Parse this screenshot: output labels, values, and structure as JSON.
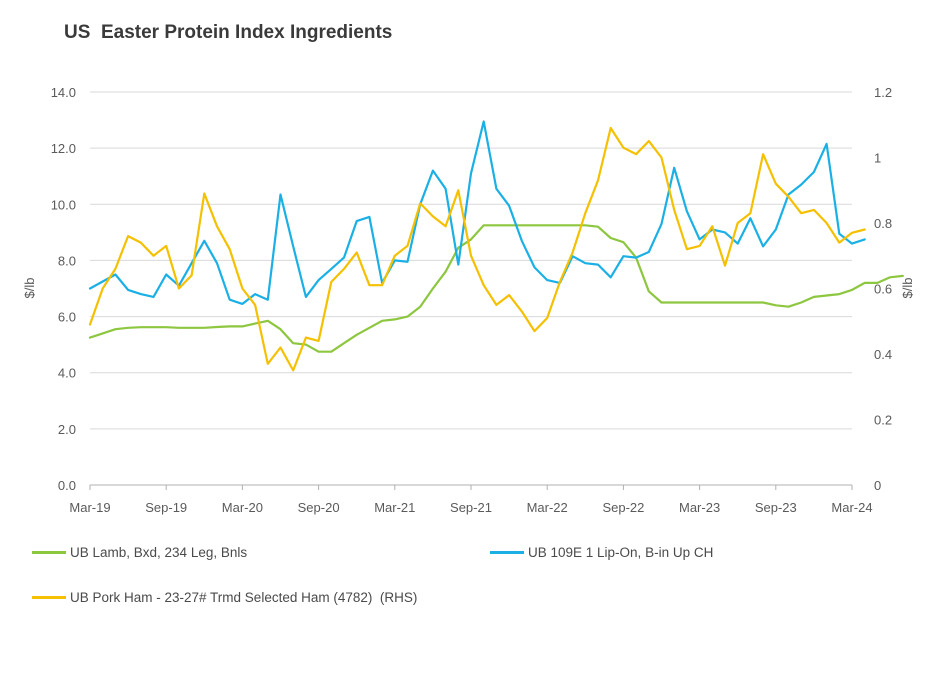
{
  "chart_data": {
    "type": "line",
    "title": "US  Easter Protein Index Ingredients",
    "ylabel": "$/lb",
    "y2label": "$/lb",
    "ylim": [
      0,
      14
    ],
    "y2lim": [
      0,
      1.2
    ],
    "yticks": [
      "0.0",
      "2.0",
      "4.0",
      "6.0",
      "8.0",
      "10.0",
      "12.0",
      "14.0"
    ],
    "y2ticks": [
      "0",
      "0.2",
      "0.4",
      "0.6",
      "0.8",
      "1",
      "1.2"
    ],
    "xticks": [
      "Mar-19",
      "Sep-19",
      "Mar-20",
      "Sep-20",
      "Mar-21",
      "Sep-21",
      "Mar-22",
      "Sep-22",
      "Mar-23",
      "Sep-23",
      "Mar-24"
    ],
    "xtick_month_index": [
      0,
      6,
      12,
      18,
      24,
      30,
      36,
      42,
      48,
      54,
      60
    ],
    "grid": "horizontal",
    "legend_position": "bottom",
    "series": [
      {
        "name": "UB Lamb, Bxd, 234 Leg, Bnls",
        "axis": "left",
        "color": "#8dc63f",
        "values": [
          5.25,
          5.4,
          5.55,
          5.6,
          5.62,
          5.62,
          5.62,
          5.6,
          5.6,
          5.6,
          5.63,
          5.65,
          5.65,
          5.75,
          5.85,
          5.55,
          5.05,
          5.0,
          4.75,
          4.75,
          5.05,
          5.35,
          5.6,
          5.85,
          5.9,
          6.0,
          6.35,
          7.0,
          7.6,
          8.45,
          8.75,
          9.25,
          9.25,
          9.25,
          9.25,
          9.25,
          9.25,
          9.25,
          9.25,
          9.25,
          9.2,
          8.8,
          8.65,
          8.1,
          6.9,
          6.5,
          6.5,
          6.5,
          6.5,
          6.5,
          6.5,
          6.5,
          6.5,
          6.5,
          6.4,
          6.35,
          6.5,
          6.7,
          6.75,
          6.8,
          6.95,
          7.2,
          7.2,
          7.4,
          7.45
        ]
      },
      {
        "name": "UB 109E 1 Lip-On, B-in Up CH",
        "axis": "left",
        "color": "#1ab0e6",
        "values": [
          7.0,
          7.25,
          7.5,
          6.95,
          6.8,
          6.7,
          7.5,
          7.1,
          7.9,
          8.7,
          7.9,
          6.6,
          6.45,
          6.8,
          6.6,
          10.35,
          8.5,
          6.7,
          7.3,
          7.7,
          8.1,
          9.4,
          9.55,
          7.2,
          8.0,
          7.95,
          10.0,
          11.2,
          10.55,
          7.85,
          11.1,
          12.95,
          10.55,
          9.95,
          8.7,
          7.75,
          7.3,
          7.2,
          8.15,
          7.9,
          7.85,
          7.4,
          8.15,
          8.1,
          8.3,
          9.3,
          11.3,
          9.75,
          8.75,
          9.1,
          9.0,
          8.6,
          9.5,
          8.5,
          9.1,
          10.35,
          10.7,
          11.15,
          12.15,
          8.95,
          8.6,
          8.75
        ]
      },
      {
        "name": "UB Pork Ham - 23-27# Trmd Selected Ham (4782)  (RHS)",
        "axis": "right",
        "color": "#f5c000",
        "values": [
          0.49,
          0.6,
          0.66,
          0.76,
          0.74,
          0.7,
          0.73,
          0.6,
          0.64,
          0.89,
          0.79,
          0.72,
          0.6,
          0.55,
          0.37,
          0.42,
          0.35,
          0.45,
          0.44,
          0.62,
          0.66,
          0.71,
          0.61,
          0.61,
          0.7,
          0.73,
          0.86,
          0.82,
          0.79,
          0.9,
          0.7,
          0.61,
          0.55,
          0.58,
          0.53,
          0.47,
          0.51,
          0.62,
          0.71,
          0.83,
          0.93,
          1.09,
          1.03,
          1.01,
          1.05,
          1.0,
          0.84,
          0.72,
          0.73,
          0.79,
          0.67,
          0.8,
          0.83,
          1.01,
          0.92,
          0.88,
          0.83,
          0.84,
          0.8,
          0.74,
          0.77,
          0.78
        ]
      }
    ]
  }
}
